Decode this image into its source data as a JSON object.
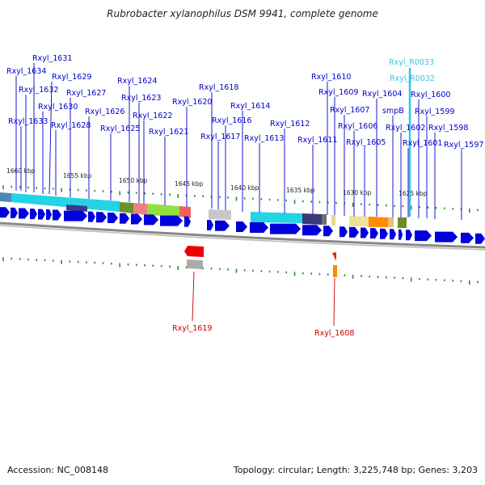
{
  "title": "Rubrobacter xylanophilus DSM 9941, complete genome",
  "footer": {
    "accession": "Accession: NC_008148",
    "summary": "Topology: circular; Length: 3,225,748 bp; Genes: 3,203"
  },
  "colors": {
    "label_forward": "#0000cc",
    "label_reverse": "#cc0000",
    "label_rna": "#33c6e6",
    "gene_blue": "#0000dd",
    "gene_red": "#ee0000",
    "tick_green": "#2e8b2e",
    "backbone": "#888888"
  },
  "ticks": [
    "1660 kbp",
    "1655 kbp",
    "1650 kbp",
    "1645 kbp",
    "1640 kbp",
    "1635 kbp",
    "1630 kbp",
    "1625 kbp"
  ],
  "labels_forward": [
    "Rxyl_1631",
    "Rxyl_1634",
    "Rxyl_1629",
    "Rxyl_1632",
    "Rxyl_1627",
    "Rxyl_1630",
    "Rxyl_1626",
    "Rxyl_1633",
    "Rxyl_1628",
    "Rxyl_1625",
    "Rxyl_1624",
    "Rxyl_1623",
    "Rxyl_1622",
    "Rxyl_1621",
    "Rxyl_1620",
    "Rxyl_1618",
    "Rxyl_1617",
    "Rxyl_1616",
    "Rxyl_1614",
    "Rxyl_1613",
    "Rxyl_1612",
    "Rxyl_1611",
    "Rxyl_1610",
    "Rxyl_1609",
    "Rxyl_1607",
    "Rxyl_1606",
    "Rxyl_1605",
    "Rxyl_1604",
    "smpB",
    "Rxyl_1602",
    "Rxyl_1601",
    "Rxyl_1600",
    "Rxyl_1599",
    "Rxyl_1598",
    "Rxyl_1597"
  ],
  "labels_rna": [
    "Rxyl_R0033",
    "Rxyl_R0032"
  ],
  "labels_reverse": [
    "Rxyl_1619",
    "Rxyl_1608"
  ]
}
